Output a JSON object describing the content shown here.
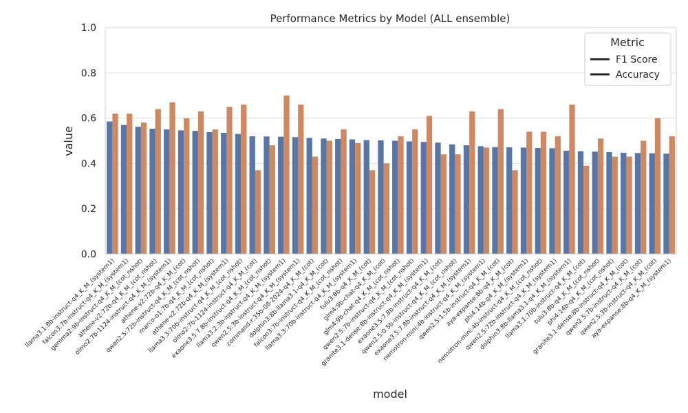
{
  "chart_data": {
    "type": "bar",
    "title": "Performance Metrics by Model (ALL ensemble)",
    "xlabel": "model",
    "ylabel": "value",
    "ylim": [
      0,
      1
    ],
    "yticks": [
      "0.0",
      "0.2",
      "0.4",
      "0.6",
      "0.8",
      "1.0"
    ],
    "grid": "horizontal",
    "legend": {
      "title": "Metric",
      "placement": "top-right"
    },
    "colors": {
      "f1": "#5875a4",
      "accuracy": "#cc8963",
      "grid": "#dddddd",
      "spine": "#cccccc"
    },
    "categories": [
      "llama3.1:8b-instruct-q4_K_M_(system1)",
      "falcon3:7b-instruct-q4_K_M_(system1)",
      "gemma2:9b-instruct-q4_K_M_(cot_nshot)",
      "athene-v2:72b-q4_K_M_(cot_nshot)",
      "olmo2:7b-1124-instruct-q4_K_M_(system1)",
      "athene-v2:72b-q4_K_M_(cot)",
      "qwen2.5:72b-instruct-q4_K_M_(cot_nshot)",
      "marco-o1:7b-q4_K_M_(cot_nshot)",
      "athene-v2:72b-q4_K_M_(system1)",
      "llama3.3:70b-instruct-q4_K_M_(cot_nshot)",
      "olmo2:7b-1124-instruct-q4_K_M_(cot)",
      "exaone3.5:7.8b-instruct-q4_K_M_(cot_nshot)",
      "llama3.2:3b-instruct-q4_K_M_(system1)",
      "qwen2.5:3b-instruct-q4_K_M_(system1)",
      "command-r:35b-08-2024-q4_K_M_(cot)",
      "dolphin3:8b-llama3.1-q4_K_M_(cot)",
      "falcon3:7b-instruct-q4_K_M_(cot_nshot)",
      "llama3.3:70b-instruct-q4_K_M_(system1)",
      "tulu3:8b-q4_K_M_(cot)",
      "glm4:9b-chat-q4_K_M_(cot)",
      "glm4:9b-chat-q4_K_M_(cot_nshot)",
      "qwen2.5:7b-instruct-q4_K_M_(cot_nshot)",
      "granite3.1-dense:8b-instruct-q4_K_M_(system1)",
      "exaone3.5:7.8b-instruct-q4_K_M_(cot)",
      "qwen2.5:0.5b-instruct-q4_K_M_(cot_nshot)",
      "exaone3.5:7.8b-instruct-q4_K_M_(system1)",
      "nemotron-mini:4b-instruct-q4_K_M_(system1)",
      "qwen2.5:1.5b-instruct-q4_K_M_(cot)",
      "aya-expanse:8b-q4_K_M_(cot)",
      "phi4:14b-q4_K_M_(system1)",
      "nemotron-mini:4b-instruct-q4_K_M_(cot_nshot)",
      "qwen2.5:72b-instruct-q4_K_M_(system1)",
      "dolphin3:8b-llama3.1-q4_K_M_(system1)",
      "llama3.1:70b-instruct-q4_K_M_(cot)",
      "tulu3:8b-q4_K_M_(cot_nshot)",
      "phi4:14b-q4_K_M_(cot_nshot)",
      "granite3.1-dense:8b-instruct-q4_K_M_(cot)",
      "qwen2.5:7b-instruct-q4_K_M_(cot)",
      "qwen2.5:3b-instruct-q4_K_M_(cot)",
      "aya-expanse:8b-q4_K_M_(system1)"
    ],
    "series": [
      {
        "name": "F1 Score",
        "color": "#5875a4",
        "values": [
          0.585,
          0.57,
          0.562,
          0.553,
          0.55,
          0.546,
          0.544,
          0.538,
          0.535,
          0.53,
          0.52,
          0.519,
          0.518,
          0.516,
          0.513,
          0.51,
          0.508,
          0.506,
          0.503,
          0.502,
          0.5,
          0.497,
          0.495,
          0.492,
          0.484,
          0.48,
          0.476,
          0.472,
          0.471,
          0.47,
          0.468,
          0.467,
          0.456,
          0.454,
          0.452,
          0.45,
          0.447,
          0.446,
          0.445,
          0.443
        ]
      },
      {
        "name": "Accuracy",
        "color": "#cc8963",
        "values": [
          0.62,
          0.62,
          0.58,
          0.64,
          0.67,
          0.6,
          0.63,
          0.55,
          0.65,
          0.66,
          0.37,
          0.48,
          0.7,
          0.66,
          0.43,
          0.5,
          0.55,
          0.49,
          0.37,
          0.4,
          0.52,
          0.55,
          0.61,
          0.44,
          0.44,
          0.63,
          0.47,
          0.64,
          0.37,
          0.54,
          0.54,
          0.52,
          0.66,
          0.39,
          0.51,
          0.43,
          0.43,
          0.5,
          0.6,
          0.52
        ]
      }
    ]
  }
}
